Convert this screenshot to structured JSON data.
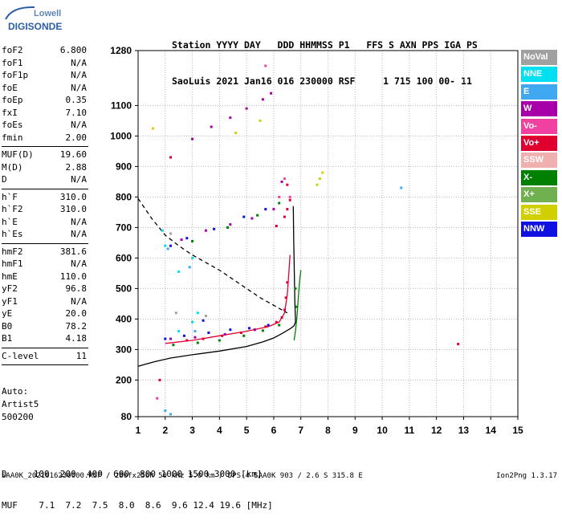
{
  "logo": {
    "line1": "Lowell",
    "line2": "DIGISONDE"
  },
  "header": {
    "line1": "Station YYYY DAY   DDD HHMMSS P1   FFS S AXN PPS IGA PS",
    "line2": "SaoLuis 2021 Jan16 016 230000 RSF     1 715 100 00- 11"
  },
  "params": {
    "group1": [
      {
        "label": "foF2",
        "value": "6.800"
      },
      {
        "label": "foF1",
        "value": "N/A"
      },
      {
        "label": "foF1p",
        "value": "N/A"
      },
      {
        "label": "foE",
        "value": "N/A"
      },
      {
        "label": "foEp",
        "value": "0.35"
      },
      {
        "label": "fxI",
        "value": "7.10"
      },
      {
        "label": "foEs",
        "value": "N/A"
      },
      {
        "label": "fmin",
        "value": "2.00"
      }
    ],
    "group2": [
      {
        "label": "MUF(D)",
        "value": "19.60"
      },
      {
        "label": "M(D)",
        "value": "2.88"
      },
      {
        "label": "D",
        "value": "N/A"
      }
    ],
    "group3": [
      {
        "label": "h`F",
        "value": "310.0"
      },
      {
        "label": "h`F2",
        "value": "310.0"
      },
      {
        "label": "h`E",
        "value": "N/A"
      },
      {
        "label": "h`Es",
        "value": "N/A"
      }
    ],
    "group4": [
      {
        "label": "hmF2",
        "value": "381.6"
      },
      {
        "label": "hmF1",
        "value": "N/A"
      },
      {
        "label": "hmE",
        "value": "110.0"
      },
      {
        "label": "yF2",
        "value": "96.8"
      },
      {
        "label": "yF1",
        "value": "N/A"
      },
      {
        "label": "yE",
        "value": "20.0"
      },
      {
        "label": "B0",
        "value": "78.2"
      },
      {
        "label": "B1",
        "value": "4.18"
      }
    ],
    "group5": [
      {
        "label": "C-level",
        "value": "11"
      }
    ]
  },
  "auto": {
    "line1": "Auto:",
    "line2": "Artist5",
    "line3": "500200"
  },
  "legend": [
    {
      "label": "NoVal",
      "color": "#a0a0a0"
    },
    {
      "label": "NNE",
      "color": "#00e0f0"
    },
    {
      "label": "E",
      "color": "#40a8f0"
    },
    {
      "label": "W",
      "color": "#a800a8"
    },
    {
      "label": "Vo-",
      "color": "#f040a0"
    },
    {
      "label": "Vo+",
      "color": "#e00030"
    },
    {
      "label": "SSW",
      "color": "#f0b0b0"
    },
    {
      "label": "X-",
      "color": "#008000"
    },
    {
      "label": "X+",
      "color": "#70b050"
    },
    {
      "label": "SSE",
      "color": "#d0d000"
    },
    {
      "label": "NNW",
      "color": "#1010e0"
    }
  ],
  "footer": {
    "row1": "D     100  200  400  600  800 1000 1500 3000 [km]",
    "row2": "MUF    7.1  7.2  7.5  8.0  8.6  9.6 12.4 19.6 [MHz]",
    "line": "SAA0K_2021016230000.RSF / 280fx256h 50 kHz 5.0 km / DPS-4 SAA0K 903 / 2.6 S 315.8 E",
    "version": "Ion2Png 1.3.17"
  },
  "chart_data": {
    "type": "scatter",
    "xlim": [
      1,
      15
    ],
    "ylim": [
      80,
      1280
    ],
    "x_ticks": [
      1,
      2,
      3,
      4,
      5,
      6,
      7,
      8,
      9,
      10,
      11,
      12,
      13,
      14,
      15
    ],
    "y_ticks": [
      80,
      200,
      300,
      400,
      500,
      600,
      700,
      800,
      900,
      1000,
      1100,
      1280
    ],
    "grid": true,
    "series": [
      {
        "name": "X+",
        "type": "line",
        "style": "solid",
        "color": "#008000",
        "points": [
          [
            6.75,
            330
          ],
          [
            6.8,
            360
          ],
          [
            6.85,
            400
          ],
          [
            6.9,
            460
          ],
          [
            6.95,
            520
          ],
          [
            7.0,
            560
          ]
        ]
      },
      {
        "name": "Vo-",
        "type": "line",
        "style": "solid",
        "color": "#e00030",
        "points": [
          [
            2.0,
            320
          ],
          [
            3.0,
            330
          ],
          [
            4.0,
            345
          ],
          [
            5.0,
            360
          ],
          [
            5.8,
            375
          ],
          [
            6.2,
            390
          ],
          [
            6.4,
            420
          ],
          [
            6.5,
            480
          ],
          [
            6.55,
            540
          ],
          [
            6.6,
            610
          ]
        ]
      },
      {
        "name": "profile",
        "type": "line",
        "style": "solid",
        "color": "#000000",
        "points": [
          [
            1.0,
            245
          ],
          [
            1.6,
            260
          ],
          [
            2.2,
            272
          ],
          [
            3.0,
            283
          ],
          [
            4.0,
            295
          ],
          [
            5.0,
            310
          ],
          [
            5.6,
            325
          ],
          [
            6.0,
            338
          ],
          [
            6.3,
            352
          ],
          [
            6.6,
            368
          ],
          [
            6.75,
            378
          ],
          [
            6.8,
            390
          ],
          [
            6.8,
            400
          ],
          [
            6.78,
            450
          ],
          [
            6.76,
            550
          ],
          [
            6.74,
            650
          ],
          [
            6.72,
            770
          ]
        ]
      },
      {
        "name": "profile-dashed",
        "type": "line",
        "style": "dashed",
        "color": "#000000",
        "points": [
          [
            1.0,
            795
          ],
          [
            1.5,
            730
          ],
          [
            2.0,
            675
          ],
          [
            2.5,
            640
          ],
          [
            3.0,
            610
          ],
          [
            3.5,
            585
          ],
          [
            4.0,
            560
          ],
          [
            4.5,
            530
          ],
          [
            5.0,
            500
          ],
          [
            5.5,
            470
          ],
          [
            6.0,
            445
          ],
          [
            6.5,
            420
          ]
        ]
      },
      {
        "name": "Vo+",
        "type": "scatter",
        "color": "#e00030",
        "points": [
          [
            2.8,
            330
          ],
          [
            3.4,
            335
          ],
          [
            4.1,
            345
          ],
          [
            4.8,
            355
          ],
          [
            5.3,
            365
          ],
          [
            5.7,
            375
          ],
          [
            6.1,
            390
          ],
          [
            6.3,
            405
          ],
          [
            6.4,
            430
          ],
          [
            6.45,
            470
          ],
          [
            6.5,
            520
          ],
          [
            6.1,
            705
          ],
          [
            6.4,
            735
          ],
          [
            6.5,
            760
          ],
          [
            6.6,
            790
          ],
          [
            6.5,
            840
          ]
        ]
      },
      {
        "name": "W",
        "type": "scatter",
        "color": "#a800a8",
        "points": [
          [
            2.2,
            335
          ],
          [
            3.1,
            340
          ],
          [
            4.2,
            350
          ],
          [
            5.3,
            365
          ],
          [
            2.6,
            660
          ],
          [
            3.5,
            690
          ],
          [
            4.4,
            710
          ],
          [
            5.2,
            730
          ],
          [
            6.0,
            760
          ],
          [
            6.3,
            850
          ],
          [
            3.0,
            990
          ],
          [
            3.7,
            1030
          ],
          [
            4.4,
            1060
          ],
          [
            5.0,
            1090
          ],
          [
            5.6,
            1120
          ],
          [
            5.9,
            1140
          ]
        ]
      },
      {
        "name": "NNW",
        "type": "scatter",
        "color": "#1010e0",
        "points": [
          [
            2.0,
            335
          ],
          [
            2.7,
            345
          ],
          [
            3.6,
            355
          ],
          [
            4.4,
            365
          ],
          [
            5.1,
            370
          ],
          [
            5.8,
            380
          ],
          [
            3.4,
            395
          ],
          [
            2.8,
            665
          ],
          [
            3.8,
            695
          ],
          [
            4.9,
            735
          ],
          [
            5.7,
            760
          ],
          [
            2.2,
            640
          ]
        ]
      },
      {
        "name": "X-",
        "type": "scatter",
        "color": "#008000",
        "points": [
          [
            2.3,
            315
          ],
          [
            3.2,
            322
          ],
          [
            4.0,
            330
          ],
          [
            4.9,
            345
          ],
          [
            5.6,
            362
          ],
          [
            6.2,
            380
          ],
          [
            3.0,
            655
          ],
          [
            4.3,
            700
          ],
          [
            5.4,
            740
          ],
          [
            6.2,
            780
          ],
          [
            6.8,
            500
          ],
          [
            6.85,
            440
          ]
        ]
      },
      {
        "name": "SSE",
        "type": "scatter",
        "color": "#d0d000",
        "points": [
          [
            7.6,
            840
          ],
          [
            7.7,
            860
          ],
          [
            7.8,
            880
          ],
          [
            1.55,
            1025
          ],
          [
            5.5,
            1050
          ],
          [
            4.6,
            1010
          ]
        ]
      },
      {
        "name": "NNE",
        "type": "scatter",
        "color": "#00e0f0",
        "points": [
          [
            2.0,
            640
          ],
          [
            1.9,
            690
          ],
          [
            2.5,
            555
          ],
          [
            3.0,
            600
          ],
          [
            3.2,
            420
          ],
          [
            2.5,
            360
          ],
          [
            3.0,
            390
          ]
        ]
      },
      {
        "name": "E",
        "type": "scatter",
        "color": "#40a8f0",
        "points": [
          [
            2.1,
            630
          ],
          [
            2.9,
            570
          ],
          [
            3.1,
            360
          ],
          [
            10.7,
            830
          ],
          [
            2.0,
            100
          ],
          [
            2.2,
            88
          ]
        ]
      },
      {
        "name": "NoVal",
        "type": "scatter",
        "color": "#a0a0a0",
        "points": [
          [
            2.2,
            680
          ],
          [
            2.4,
            420
          ],
          [
            3.5,
            410
          ]
        ]
      },
      {
        "name": "Vo-pts",
        "type": "scatter",
        "color": "#f040a0",
        "points": [
          [
            6.2,
            800
          ],
          [
            6.4,
            860
          ],
          [
            5.7,
            1230
          ],
          [
            6.6,
            800
          ],
          [
            1.7,
            140
          ]
        ]
      },
      {
        "name": "misc",
        "type": "scatter",
        "color": "#e00030",
        "points": [
          [
            12.8,
            318
          ],
          [
            2.2,
            930
          ],
          [
            1.8,
            200
          ]
        ]
      }
    ]
  }
}
